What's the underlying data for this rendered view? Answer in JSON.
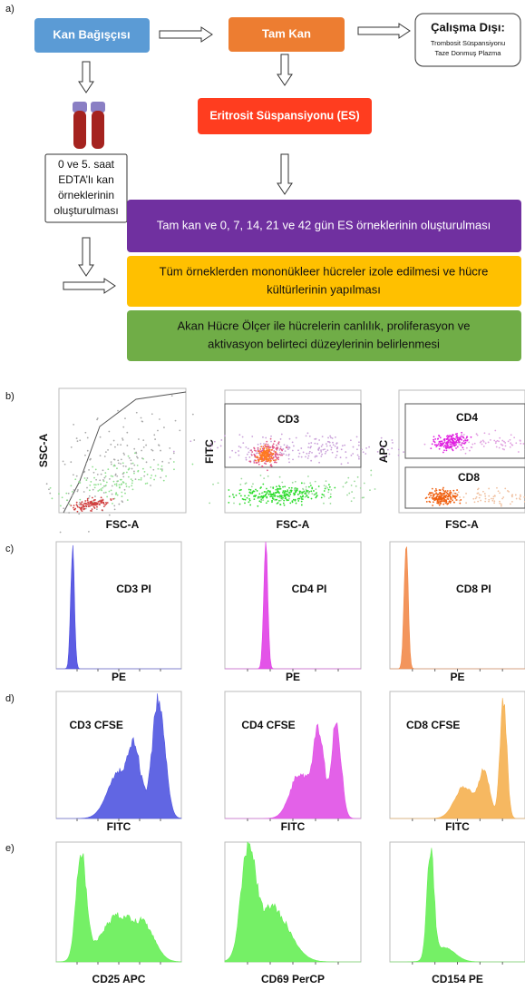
{
  "a": {
    "label": "a)",
    "donor": "Kan Bağışçısı",
    "whole_blood": "Tam Kan",
    "excluded": {
      "title": "Çalışma Dışı:",
      "items": [
        "Trombosit Süspansiyonu",
        "Taze Donmuş Plazma"
      ]
    },
    "es": "Eritrosit Süspansiyonu (ES)",
    "samples": [
      "0 ve 5. saat",
      "EDTA’lı kan",
      "örneklerinin",
      "oluşturulması"
    ],
    "steps": [
      [
        "Tam kan ve 0, 7, 14, 21 ve 42 gün ES örneklerinin oluşturulması"
      ],
      [
        "Tüm örneklerden mononükleer hücreler izole edilmesi ve hücre",
        "kültürlerinin yapılması"
      ],
      [
        "Akan Hücre Ölçer ile hücrelerin canlılık, proliferasyon ve",
        "aktivasyon belirteci düzeylerinin belirlenmesi"
      ]
    ]
  },
  "b": {
    "label": "b)",
    "plots": [
      {
        "x_label": "FSC-A",
        "y_label": "SSC-A"
      },
      {
        "x_label": "FSC-A",
        "y_label": "FITC",
        "gates": [
          "CD3"
        ]
      },
      {
        "x_label": "FSC-A",
        "y_label": "APC",
        "gates": [
          "CD4",
          "CD8"
        ]
      }
    ]
  },
  "c": {
    "label": "c)",
    "plots": [
      {
        "title": "CD3 PI",
        "x_label": "PE"
      },
      {
        "title": "CD4 PI",
        "x_label": "PE"
      },
      {
        "title": "CD8 PI",
        "x_label": "PE"
      }
    ]
  },
  "d": {
    "label": "d)",
    "plots": [
      {
        "title": "CD3 CFSE",
        "x_label": "FITC"
      },
      {
        "title": "CD4 CFSE",
        "x_label": "FITC"
      },
      {
        "title": "CD8 CFSE",
        "x_label": "FITC"
      }
    ]
  },
  "e": {
    "label": "e)",
    "plots": [
      {
        "x_label": "CD25 APC"
      },
      {
        "x_label": "CD69 PerCP"
      },
      {
        "x_label": "CD154 PE"
      }
    ]
  }
}
